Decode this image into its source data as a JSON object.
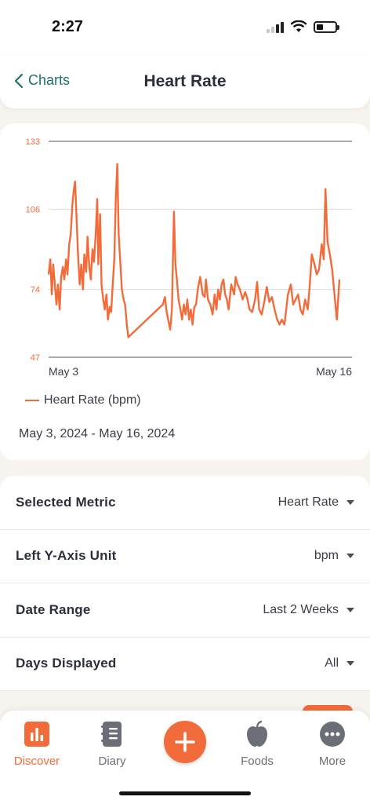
{
  "status": {
    "time": "2:27"
  },
  "header": {
    "back_label": "Charts",
    "title": "Heart Rate"
  },
  "chart_data": {
    "type": "line",
    "title": "",
    "xlabel": "",
    "ylabel": "",
    "yticks": [
      47,
      74,
      106,
      133
    ],
    "ylim": [
      47,
      133
    ],
    "x_tick_labels": [
      "May 3",
      "May 16"
    ],
    "xlim": [
      0,
      100
    ],
    "grid": true,
    "legend_position": "bottom-left",
    "color": "#f26b3a",
    "series": [
      {
        "name": "Heart Rate (bpm)",
        "points": [
          [
            0,
            80
          ],
          [
            0.6,
            86
          ],
          [
            1.1,
            72
          ],
          [
            1.6,
            84
          ],
          [
            2.2,
            75
          ],
          [
            2.7,
            68
          ],
          [
            3.2,
            76
          ],
          [
            3.8,
            66
          ],
          [
            4.3,
            79
          ],
          [
            4.9,
            83
          ],
          [
            5.4,
            78
          ],
          [
            6,
            86
          ],
          [
            6.5,
            80
          ],
          [
            7.1,
            92
          ],
          [
            7.6,
            96
          ],
          [
            8.2,
            108
          ],
          [
            8.7,
            114
          ],
          [
            9.1,
            117
          ],
          [
            9.6,
            103
          ],
          [
            10.1,
            88
          ],
          [
            10.7,
            76
          ],
          [
            11.2,
            84
          ],
          [
            11.8,
            74
          ],
          [
            12.3,
            88
          ],
          [
            12.9,
            81
          ],
          [
            13.4,
            95
          ],
          [
            14,
            83
          ],
          [
            14.5,
            78
          ],
          [
            15.1,
            90
          ],
          [
            15.6,
            85
          ],
          [
            16.2,
            96
          ],
          [
            16.7,
            110
          ],
          [
            17.1,
            84
          ],
          [
            17.7,
            104
          ],
          [
            18.2,
            76
          ],
          [
            18.8,
            70
          ],
          [
            19.3,
            66
          ],
          [
            19.9,
            72
          ],
          [
            20.4,
            62
          ],
          [
            21,
            67
          ],
          [
            21.5,
            65
          ],
          [
            22,
            75
          ],
          [
            22.6,
            86
          ],
          [
            23.1,
            110
          ],
          [
            23.6,
            124
          ],
          [
            24.1,
            96
          ],
          [
            24.7,
            84
          ],
          [
            25.2,
            74
          ],
          [
            25.8,
            70
          ],
          [
            26.3,
            68
          ],
          [
            26.9,
            60
          ],
          [
            27.4,
            55
          ],
          [
            39.3,
            68
          ],
          [
            40,
            71
          ],
          [
            40.6,
            65
          ],
          [
            41.1,
            62
          ],
          [
            41.8,
            58
          ],
          [
            42.4,
            66
          ],
          [
            43.1,
            105
          ],
          [
            43.6,
            84
          ],
          [
            44.1,
            78
          ],
          [
            44.7,
            70
          ],
          [
            45.3,
            66
          ],
          [
            45.9,
            62
          ],
          [
            46.5,
            68
          ],
          [
            47.1,
            64
          ],
          [
            47.7,
            70
          ],
          [
            48.3,
            62
          ],
          [
            48.9,
            66
          ],
          [
            49.5,
            60
          ],
          [
            50.1,
            67
          ],
          [
            50.7,
            68
          ],
          [
            51.3,
            74
          ],
          [
            52.1,
            79
          ],
          [
            53,
            72
          ],
          [
            53.7,
            71
          ],
          [
            54.1,
            78
          ],
          [
            54.8,
            70
          ],
          [
            55.6,
            68
          ],
          [
            56.4,
            64
          ],
          [
            57.1,
            72
          ],
          [
            57.7,
            66
          ],
          [
            58.3,
            74
          ],
          [
            58.9,
            70
          ],
          [
            59.5,
            76
          ],
          [
            60.1,
            78
          ],
          [
            60.7,
            72
          ],
          [
            61.3,
            70
          ],
          [
            61.9,
            66
          ],
          [
            62.8,
            76
          ],
          [
            63.8,
            72
          ],
          [
            64.3,
            79
          ],
          [
            65,
            76
          ],
          [
            65.8,
            74
          ],
          [
            66.7,
            70
          ],
          [
            67.6,
            73
          ],
          [
            68.4,
            70
          ],
          [
            69.1,
            66
          ],
          [
            70,
            65
          ],
          [
            71,
            70
          ],
          [
            71.7,
            77
          ],
          [
            72.4,
            66
          ],
          [
            73.3,
            64
          ],
          [
            74.3,
            70
          ],
          [
            75,
            75
          ],
          [
            75.9,
            69
          ],
          [
            76.8,
            71
          ],
          [
            77.7,
            66
          ],
          [
            78.6,
            62
          ],
          [
            79.4,
            60
          ],
          [
            80.2,
            62
          ],
          [
            81.1,
            60
          ],
          [
            82.3,
            72
          ],
          [
            83.3,
            76
          ],
          [
            84.1,
            68
          ],
          [
            84.9,
            70
          ],
          [
            85.8,
            72
          ],
          [
            86.6,
            66
          ],
          [
            87.4,
            64
          ],
          [
            88.2,
            70
          ],
          [
            89.1,
            66
          ],
          [
            89.8,
            76
          ],
          [
            90.5,
            88
          ],
          [
            91.4,
            84
          ],
          [
            92.2,
            80
          ],
          [
            93,
            82
          ],
          [
            93.9,
            92
          ],
          [
            94.6,
            86
          ],
          [
            95.2,
            114
          ],
          [
            95.9,
            93
          ],
          [
            96.7,
            88
          ],
          [
            97.5,
            82
          ],
          [
            98.3,
            72
          ],
          [
            99.1,
            62
          ],
          [
            100,
            78
          ]
        ]
      }
    ]
  },
  "chart_meta": {
    "legend_label": "Heart Rate (bpm)",
    "date_range": "May 3, 2024 - May 16, 2024"
  },
  "settings": [
    {
      "label": "Selected Metric",
      "value": "Heart Rate"
    },
    {
      "label": "Left Y-Axis Unit",
      "value": "bpm"
    },
    {
      "label": "Date Range",
      "value": "Last 2 Weeks"
    },
    {
      "label": "Days Displayed",
      "value": "All"
    }
  ],
  "tabs": {
    "discover": "Discover",
    "diary": "Diary",
    "foods": "Foods",
    "more": "More"
  },
  "colors": {
    "accent": "#f26b3a",
    "back_link": "#1f6f6a"
  }
}
